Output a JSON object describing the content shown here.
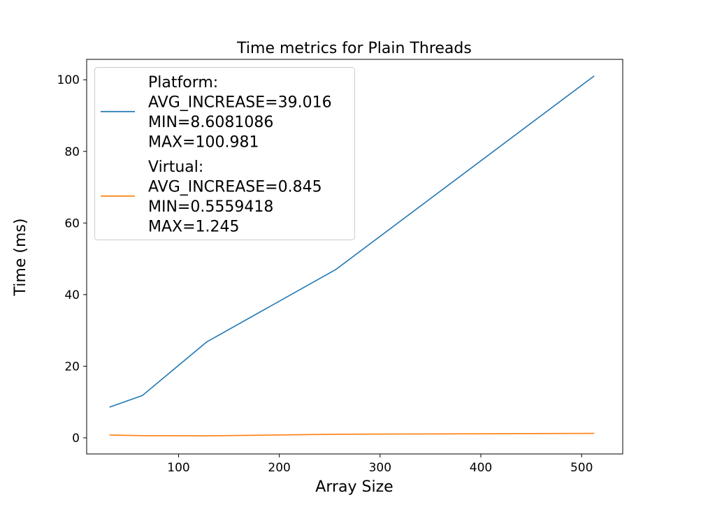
{
  "chart_data": {
    "type": "line",
    "title": "Time metrics for Plain Threads",
    "xlabel": "Array Size",
    "ylabel": "Time (ms)",
    "xlim": [
      8.8,
      540.8
    ],
    "ylim": [
      -4.5,
      105.7
    ],
    "xticks": [
      100,
      200,
      300,
      400,
      500
    ],
    "yticks": [
      0,
      20,
      40,
      60,
      80,
      100
    ],
    "grid": false,
    "legend_location": "upper left",
    "series": [
      {
        "name": "Platform:",
        "legend_lines": [
          "Platform:",
          "AVG_INCREASE=39.016",
          "MIN=8.6081086",
          "MAX=100.981"
        ],
        "color": "#1f77b4",
        "x": [
          32,
          64,
          128,
          256,
          512
        ],
        "y": [
          8.6081086,
          11.8,
          26.8,
          47.0,
          100.981
        ]
      },
      {
        "name": "Virtual:",
        "legend_lines": [
          "Virtual:",
          "AVG_INCREASE=0.845",
          "MIN=0.5559418",
          "MAX=1.245"
        ],
        "color": "#ff7f0e",
        "x": [
          32,
          64,
          128,
          256,
          512
        ],
        "y": [
          0.78,
          0.6,
          0.5559418,
          1.0,
          1.245
        ]
      }
    ]
  }
}
